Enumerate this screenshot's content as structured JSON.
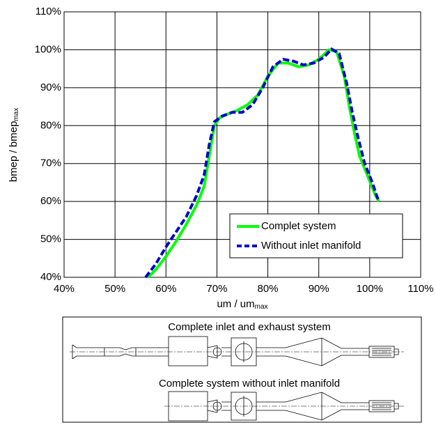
{
  "chart_data": {
    "type": "line",
    "x_label": "um / um",
    "x_label_sub": "max",
    "y_label": "bmep / bmep",
    "y_label_sub": "max",
    "xlim": [
      40,
      110
    ],
    "ylim": [
      40,
      110
    ],
    "xticks": [
      {
        "value": 40,
        "label": "40%"
      },
      {
        "value": 50,
        "label": "50%"
      },
      {
        "value": 60,
        "label": "60%"
      },
      {
        "value": 70,
        "label": "70%"
      },
      {
        "value": 80,
        "label": "80%"
      },
      {
        "value": 90,
        "label": "90%"
      },
      {
        "value": 100,
        "label": "100%"
      },
      {
        "value": 110,
        "label": "110%"
      }
    ],
    "yticks": [
      {
        "value": 40,
        "label": "40%"
      },
      {
        "value": 50,
        "label": "50%"
      },
      {
        "value": 60,
        "label": "60%"
      },
      {
        "value": 70,
        "label": "70%"
      },
      {
        "value": 80,
        "label": "80%"
      },
      {
        "value": 90,
        "label": "90%"
      },
      {
        "value": 100,
        "label": "100%"
      },
      {
        "value": 110,
        "label": "110%"
      }
    ],
    "grid": true,
    "legend": "lower right",
    "series": [
      {
        "name": "Complet system",
        "color": "#00ff00",
        "dash": false,
        "x": [
          56.5,
          58,
          60,
          62,
          64,
          66,
          67.5,
          68.5,
          69.5,
          70.5,
          72,
          74,
          76,
          78,
          80,
          82,
          84,
          86,
          88,
          90,
          92,
          93.5,
          95,
          96,
          97,
          98,
          99.5,
          101,
          101.8
        ],
        "values": [
          40,
          42,
          45.5,
          49.5,
          54,
          59,
          64,
          72,
          80,
          82,
          83,
          84,
          85.5,
          88,
          93,
          96.5,
          96.5,
          95.5,
          96,
          97.5,
          100,
          99.5,
          93,
          85,
          78,
          72,
          67,
          62,
          60
        ]
      },
      {
        "name": "Without inlet manifold",
        "color": "#0000cc",
        "dash": true,
        "x": [
          56,
          58,
          60,
          62,
          64,
          66,
          67.5,
          68.5,
          69.5,
          71,
          73,
          75,
          77,
          79,
          81,
          83,
          85,
          87,
          89,
          91,
          92.5,
          94,
          95.5,
          96.5,
          97.5,
          99,
          100.5,
          101.5,
          102
        ],
        "values": [
          40,
          43.5,
          48,
          52,
          56,
          61.5,
          67,
          75,
          81,
          82.5,
          83.5,
          83.5,
          85.5,
          90,
          95.5,
          97.5,
          97,
          96,
          96.5,
          98,
          100.2,
          99,
          91,
          84,
          78,
          70,
          65,
          61,
          60
        ]
      }
    ]
  },
  "diagram": {
    "top_label": "Complete inlet and exhaust system",
    "bottom_label": "Complete system without inlet manifold"
  }
}
